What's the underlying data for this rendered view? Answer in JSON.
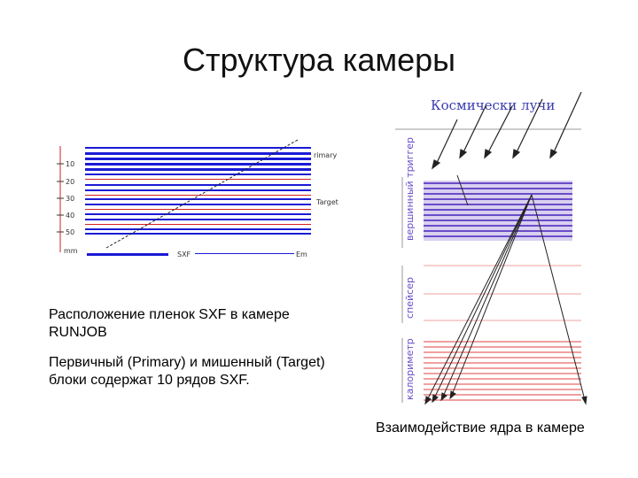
{
  "slide": {
    "title": "Структура камеры",
    "left_caption": "Расположение пленок SXF в камере RUNJOB",
    "left_description": "Первичный (Primary) и мишенный (Target) блоки содержат 10 рядов SXF.",
    "right_caption": "Взаимодействие ядра в камере"
  },
  "left_figure": {
    "label_primary": "rimary",
    "label_target": "Target",
    "label_sxf": "SXF",
    "label_em": "Em",
    "ticks": [
      "10",
      "20",
      "30",
      "40",
      "50"
    ],
    "tick_unit": "mm",
    "colors": {
      "layer": "#1a1ad6",
      "thin_layer": "#d42020",
      "track": "#222222"
    }
  },
  "right_figure": {
    "label_cosmic_rays": "Космически лучи",
    "label_vertex_trigger": "вершинный триггер",
    "label_spacer": "спейсер",
    "label_calorimeter": "калориметр",
    "colors": {
      "trigger_band": "#6a4cc8",
      "spacer_line": "#f0a0a0",
      "calorimeter_line": "#e04040",
      "label": "#6a4cc8"
    }
  }
}
